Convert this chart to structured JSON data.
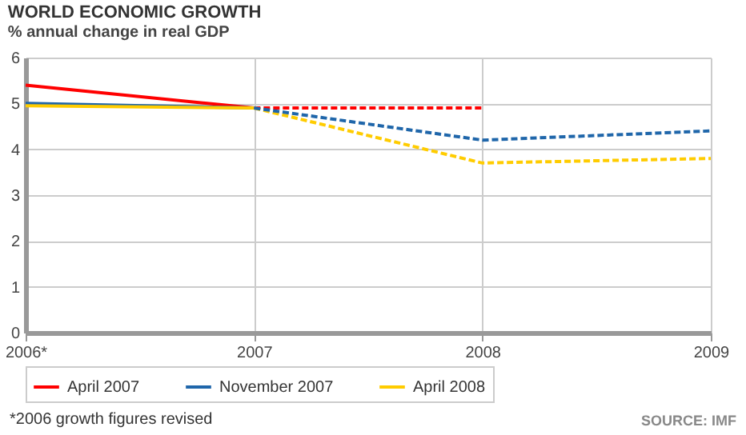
{
  "chart_data": {
    "type": "line",
    "title": "WORLD ECONOMIC GROWTH",
    "subtitle": "% annual change in real GDP",
    "categories": [
      "2006*",
      "2007",
      "2008",
      "2009"
    ],
    "series": [
      {
        "name": "April 2007",
        "color": "#ff0000",
        "line_style": "solid",
        "values": [
          5.4,
          4.9,
          null,
          null
        ]
      },
      {
        "name": "November 2007",
        "color": "#1f66aa",
        "line_style": "solid",
        "values": [
          5.0,
          4.9,
          null,
          null
        ]
      },
      {
        "name": "April 2008",
        "color": "#ffcc00",
        "line_style": "solid",
        "values": [
          4.95,
          4.9,
          null,
          null
        ]
      },
      {
        "color": "#ff0000",
        "line_style": "dashed",
        "values": [
          null,
          4.9,
          4.9,
          null
        ]
      },
      {
        "color": "#ffcc00",
        "line_style": "dashed",
        "values": [
          null,
          4.9,
          3.7,
          3.8
        ]
      },
      {
        "color": "#1f66aa",
        "line_style": "dashed",
        "values": [
          null,
          4.9,
          4.2,
          4.4
        ]
      }
    ],
    "ylim": [
      0,
      6
    ],
    "yticks": [
      0,
      1,
      2,
      3,
      4,
      5,
      6
    ],
    "grid": true,
    "legend": "bottom",
    "marker": "none",
    "annotations": [
      "*2006 growth figures revised",
      "SOURCE: IMF"
    ]
  }
}
